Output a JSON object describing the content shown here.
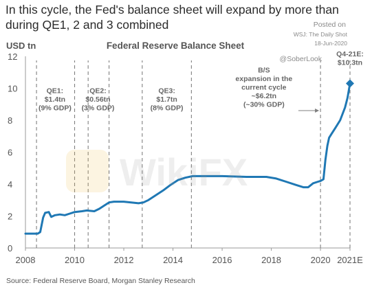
{
  "headline": "In this cycle, the Fed's balance sheet will expand by more than during QE1, 2 and 3 combined",
  "posted": {
    "line1": "Posted on",
    "line2": "WSJ: The Daily Shot",
    "line3": "18-Jun-2020",
    "line4": "@SoberLook"
  },
  "watermark": "WikiFX",
  "colors": {
    "line": "#1f78b4",
    "axis": "#9a9a9a",
    "dashed": "#7f7f7f",
    "text": "#555555",
    "annotation": "#666666"
  },
  "chart_data": {
    "type": "line",
    "title": "Federal Reserve Balance Sheet",
    "ylabel": "USD tn",
    "xlabel": "",
    "ylim": [
      0,
      12
    ],
    "yticks": [
      "0",
      "2",
      "4",
      "6",
      "8",
      "10",
      "12"
    ],
    "xlim": [
      2008,
      2021.2
    ],
    "xticks": [
      {
        "value": 2008,
        "label": "2008"
      },
      {
        "value": 2010,
        "label": "2010"
      },
      {
        "value": 2012,
        "label": "2012"
      },
      {
        "value": 2014,
        "label": "2014"
      },
      {
        "value": 2016,
        "label": "2016"
      },
      {
        "value": 2018,
        "label": "2018"
      },
      {
        "value": 2020,
        "label": "2020"
      },
      {
        "value": 2021.2,
        "label": "2021E"
      }
    ],
    "grid": false,
    "series": [
      {
        "values": [
          [
            2008.0,
            0.9
          ],
          [
            2008.5,
            0.9
          ],
          [
            2008.6,
            1.0
          ],
          [
            2008.72,
            1.9
          ],
          [
            2008.8,
            2.2
          ],
          [
            2008.95,
            2.25
          ],
          [
            2009.05,
            1.95
          ],
          [
            2009.2,
            2.05
          ],
          [
            2009.4,
            2.1
          ],
          [
            2009.6,
            2.05
          ],
          [
            2009.8,
            2.15
          ],
          [
            2010.0,
            2.25
          ],
          [
            2010.3,
            2.3
          ],
          [
            2010.5,
            2.35
          ],
          [
            2010.8,
            2.3
          ],
          [
            2011.0,
            2.45
          ],
          [
            2011.2,
            2.65
          ],
          [
            2011.4,
            2.85
          ],
          [
            2011.6,
            2.9
          ],
          [
            2011.8,
            2.9
          ],
          [
            2012.0,
            2.9
          ],
          [
            2012.3,
            2.85
          ],
          [
            2012.6,
            2.8
          ],
          [
            2012.8,
            2.85
          ],
          [
            2013.0,
            3.0
          ],
          [
            2013.3,
            3.3
          ],
          [
            2013.6,
            3.6
          ],
          [
            2013.9,
            3.95
          ],
          [
            2014.2,
            4.25
          ],
          [
            2014.5,
            4.4
          ],
          [
            2014.8,
            4.5
          ],
          [
            2015.0,
            4.5
          ],
          [
            2016.0,
            4.5
          ],
          [
            2017.0,
            4.45
          ],
          [
            2017.8,
            4.45
          ],
          [
            2018.2,
            4.35
          ],
          [
            2018.6,
            4.15
          ],
          [
            2019.0,
            3.95
          ],
          [
            2019.3,
            3.8
          ],
          [
            2019.5,
            3.8
          ],
          [
            2019.7,
            4.05
          ],
          [
            2019.9,
            4.15
          ],
          [
            2020.0,
            4.2
          ],
          [
            2020.12,
            4.3
          ],
          [
            2020.2,
            5.5
          ],
          [
            2020.28,
            6.4
          ],
          [
            2020.35,
            6.9
          ],
          [
            2020.45,
            7.15
          ],
          [
            2020.6,
            7.5
          ],
          [
            2020.8,
            8.0
          ],
          [
            2021.0,
            8.8
          ],
          [
            2021.1,
            9.4
          ],
          [
            2021.2,
            10.3
          ]
        ]
      }
    ],
    "end_marker": {
      "x": 2021.2,
      "y": 10.3
    },
    "vlines": [
      2008.45,
      2010.0,
      2010.55,
      2011.4,
      2012.75,
      2014.75,
      2020.0,
      2021.2
    ],
    "annotations": [
      {
        "lines": [
          "QE1:",
          "$1.4tn",
          "(9% GDP)"
        ],
        "x": 2009.2,
        "y": 9.7
      },
      {
        "lines": [
          "QE2:",
          "$0.56tn",
          "(3% GDP)"
        ],
        "x": 2010.95,
        "y": 9.7
      },
      {
        "lines": [
          "QE3:",
          "$1.7tn",
          "(8% GDP)"
        ],
        "x": 2013.75,
        "y": 9.7
      },
      {
        "lines": [
          "B/S",
          "expansion in the",
          "current cycle",
          "~$6.2tn",
          "(~30% GDP)"
        ],
        "x": 2017.7,
        "y": 11.0
      },
      {
        "lines": [
          "Q4-21E:",
          "$10.3tn"
        ],
        "x": 2021.2,
        "y": 12.0
      }
    ],
    "source": "Source: Federal Reserve Board, Morgan Stanley Research"
  }
}
